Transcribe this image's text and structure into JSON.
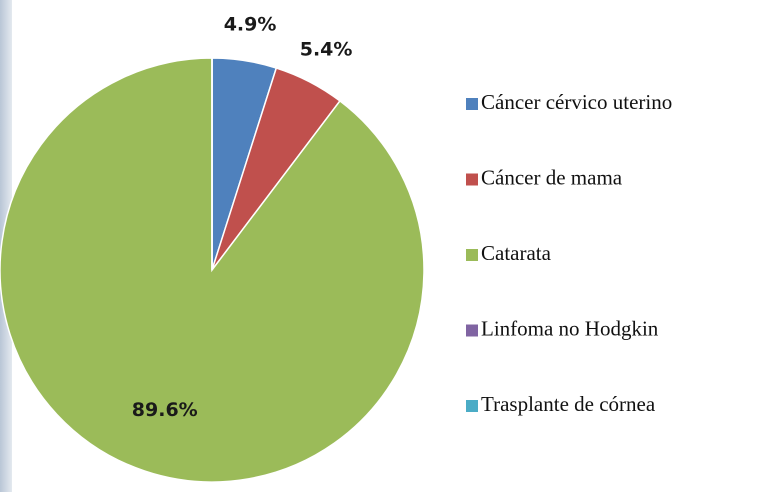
{
  "chart_data": {
    "type": "pie",
    "categories": [
      "Cáncer cérvico uterino",
      "Cáncer de mama",
      "Catarata",
      "Linfoma no Hodgkin",
      "Trasplante de córnea"
    ],
    "values": [
      4.9,
      5.4,
      89.6,
      0,
      0
    ],
    "value_labels": [
      "4.9%",
      "5.4%",
      "89.6%",
      null,
      null
    ],
    "colors": [
      "#4f81bd",
      "#c0504d",
      "#9bbb59",
      "#8064a2",
      "#4bacc6"
    ],
    "legend": "right"
  }
}
